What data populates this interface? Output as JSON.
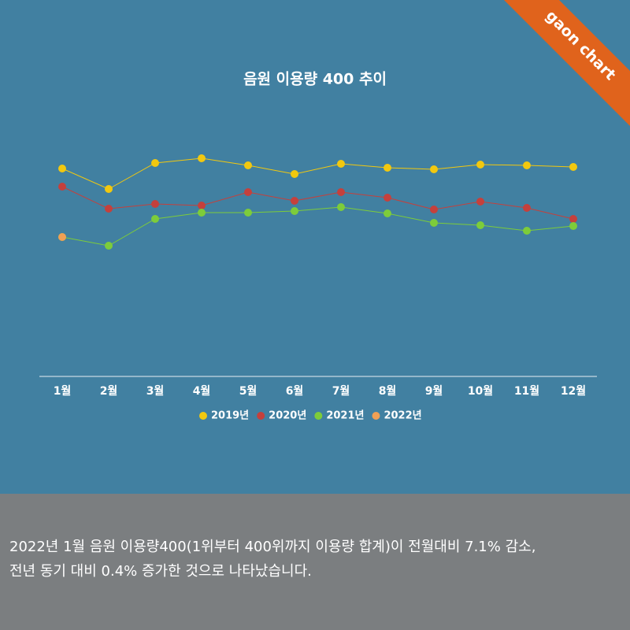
{
  "badge": "gaon chart",
  "chart_data": {
    "type": "line",
    "title": "음원 이용량 400 추이",
    "categories": [
      "1월",
      "2월",
      "3월",
      "4월",
      "5월",
      "6월",
      "7월",
      "8월",
      "9월",
      "10월",
      "11월",
      "12월"
    ],
    "series": [
      {
        "name": "2019년",
        "color": "#f2c80f",
        "values": [
          264,
          238,
          271,
          277,
          268,
          257,
          270,
          265,
          263,
          269,
          268,
          266
        ]
      },
      {
        "name": "2020년",
        "color": "#c5403c",
        "values": [
          241,
          213,
          219,
          217,
          234,
          223,
          234,
          227,
          212,
          222,
          214,
          200
        ]
      },
      {
        "name": "2021년",
        "color": "#7dcc3a",
        "values": [
          177,
          166,
          200,
          208,
          208,
          210,
          215,
          207,
          195,
          192,
          185,
          191
        ]
      },
      {
        "name": "2022년",
        "color": "#f0a055",
        "values": [
          177,
          null,
          null,
          null,
          null,
          null,
          null,
          null,
          null,
          null,
          null,
          null
        ]
      }
    ],
    "ylim": [
      0,
      300
    ],
    "grid": false
  },
  "description": [
    "2022년 1월 음원 이용량400(1위부터 400위까지 이용량 합계)이 전월대비 7.1% 감소,",
    "전년 동기 대비 0.4% 증가한 것으로 나타났습니다."
  ]
}
